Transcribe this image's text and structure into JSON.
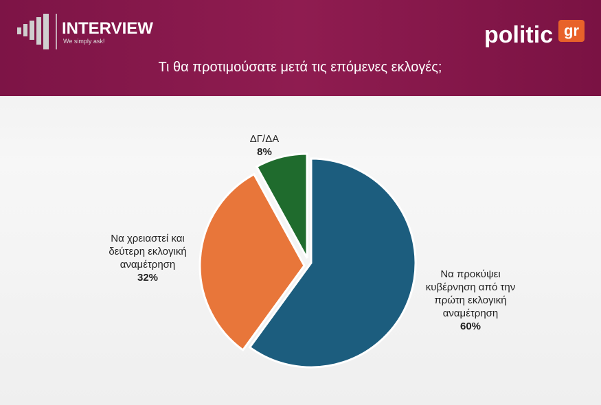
{
  "header": {
    "brand": "INTERVIEW",
    "tagline": "We simply ask!",
    "logo": "politic",
    "logo_suffix": "gr"
  },
  "chart_data": {
    "type": "pie",
    "title": "Τι θα προτιμούσατε μετά τις επόμενες εκλογές;",
    "categories": [
      "Να προκύψει κυβέρνηση από την πρώτη εκλογική αναμέτρηση",
      "Να χρειαστεί και δεύτερη εκλογική αναμέτρηση",
      "ΔΓ/ΔΑ"
    ],
    "values": [
      60,
      32,
      8
    ],
    "value_labels": [
      "60%",
      "32%",
      "8%"
    ],
    "colors": [
      "#1c5d7e",
      "#e8763a",
      "#1f6b2d"
    ]
  }
}
